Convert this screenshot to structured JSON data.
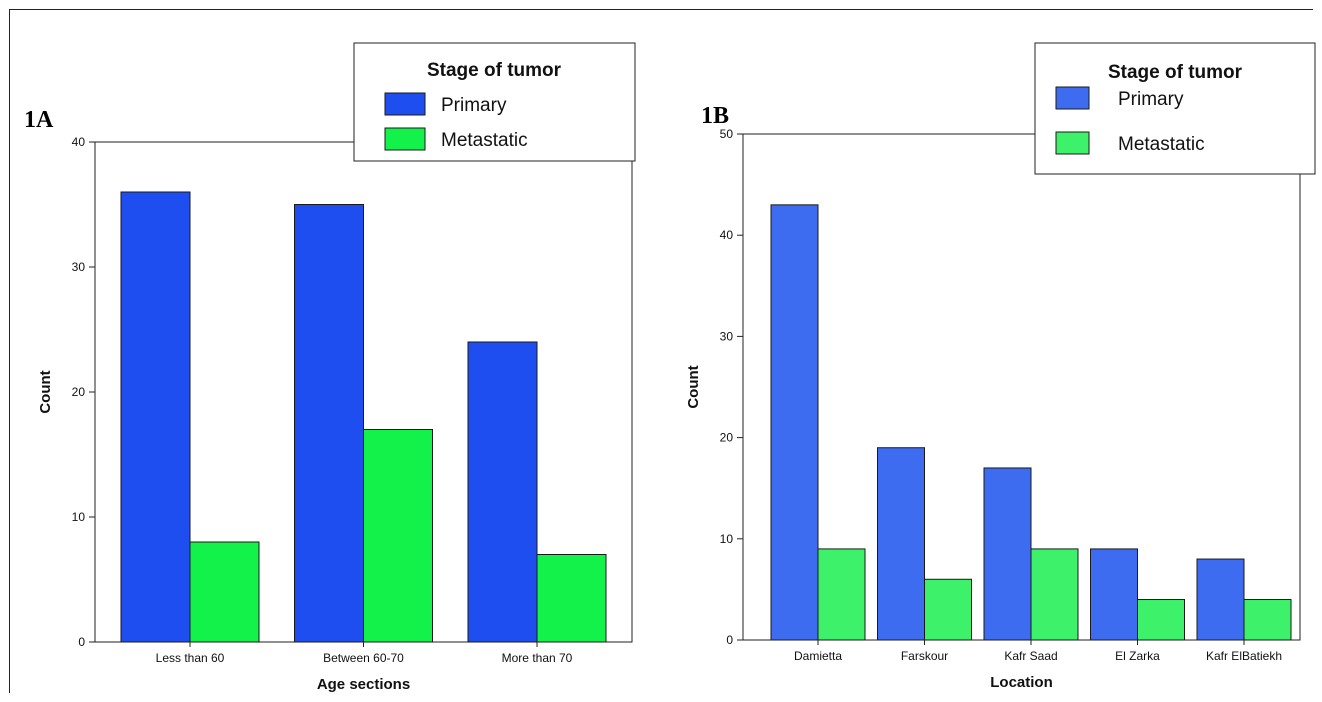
{
  "chart_data": [
    {
      "panel": "1A",
      "type": "bar",
      "categories": [
        "Less than 60",
        "Between 60-70",
        "More than 70"
      ],
      "series": [
        {
          "name": "Primary",
          "values": [
            36,
            35,
            24
          ]
        },
        {
          "name": "Metastatic",
          "values": [
            8,
            17,
            7
          ]
        }
      ],
      "xlabel": "Age sections",
      "ylabel": "Count",
      "ylim": [
        0,
        40
      ],
      "yticks": [
        0,
        10,
        20,
        30,
        40
      ],
      "legend": {
        "title": "Stage of tumor",
        "position": "top-right"
      },
      "grid": false
    },
    {
      "panel": "1B",
      "type": "bar",
      "categories": [
        "Damietta",
        "Farskour",
        "Kafr Saad",
        "El Zarka",
        "Kafr ElBatiekh"
      ],
      "series": [
        {
          "name": "Primary",
          "values": [
            43,
            19,
            17,
            9,
            8
          ]
        },
        {
          "name": "Metastatic",
          "values": [
            9,
            6,
            9,
            4,
            4
          ]
        }
      ],
      "xlabel": "Location",
      "ylabel": "Count",
      "ylim": [
        0,
        50
      ],
      "yticks": [
        0,
        10,
        20,
        30,
        40,
        50
      ],
      "legend": {
        "title": "Stage of tumor",
        "position": "top-right"
      },
      "grid": false
    }
  ],
  "colors": {
    "primary_a": "#1f4ef0",
    "metastatic_a": "#12f24a",
    "primary_b": "#3d6cf0",
    "metastatic_b": "#3df26a"
  }
}
